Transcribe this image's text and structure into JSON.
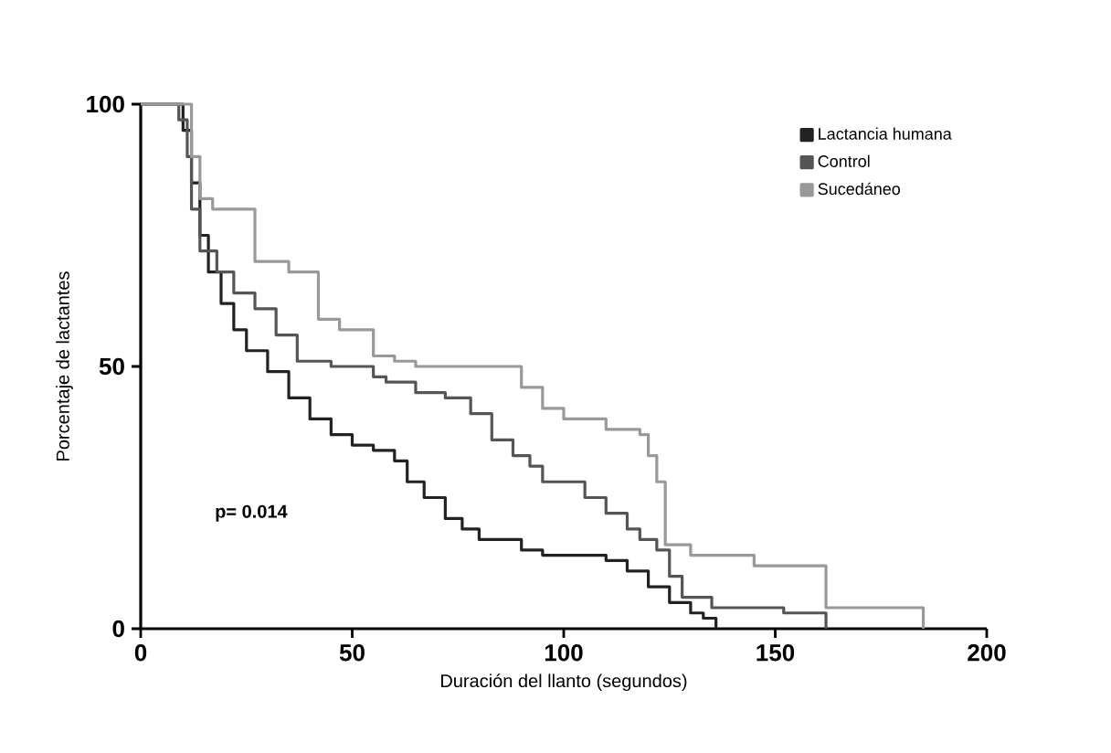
{
  "chart_data": {
    "type": "step",
    "xlabel": "Duración del llanto (segundos)",
    "ylabel": "Porcentaje de lactantes",
    "xlim": [
      0,
      200
    ],
    "ylim": [
      0,
      100
    ],
    "xticks": [
      0,
      50,
      100,
      150,
      200
    ],
    "yticks": [
      0,
      50,
      100
    ],
    "legend": "top right",
    "grid": false,
    "marker": "none",
    "line_style": "solid",
    "annotations": [
      "p= 0.014"
    ],
    "series": [
      {
        "name": "Lactancia humana",
        "color": "#222222",
        "x": [
          0,
          8,
          10,
          12,
          14,
          16,
          19,
          22,
          25,
          30,
          35,
          40,
          45,
          50,
          55,
          60,
          63,
          67,
          72,
          76,
          80,
          90,
          95,
          110,
          115,
          120,
          125,
          130,
          133,
          136
        ],
        "values": [
          100,
          100,
          95,
          85,
          75,
          68,
          62,
          57,
          53,
          49,
          44,
          40,
          37,
          35,
          34,
          32,
          28,
          25,
          21,
          19,
          17,
          15,
          14,
          13,
          11,
          8,
          5,
          3,
          2,
          0
        ]
      },
      {
        "name": "Control",
        "color": "#555555",
        "x": [
          0,
          7,
          9,
          11,
          12,
          14,
          18,
          22,
          27,
          32,
          37,
          45,
          55,
          58,
          65,
          72,
          78,
          83,
          88,
          92,
          95,
          105,
          110,
          115,
          118,
          122,
          125,
          128,
          135,
          152,
          162
        ],
        "values": [
          100,
          100,
          97,
          90,
          80,
          72,
          68,
          64,
          61,
          56,
          51,
          50,
          48,
          47,
          45,
          44,
          41,
          36,
          33,
          31,
          28,
          25,
          22,
          19,
          17,
          15,
          10,
          6,
          4,
          3,
          0
        ]
      },
      {
        "name": "Sucedáneo",
        "color": "#999999",
        "x": [
          0,
          10,
          12,
          14,
          17,
          27,
          35,
          42,
          47,
          55,
          60,
          65,
          90,
          95,
          100,
          110,
          118,
          120,
          122,
          124,
          130,
          145,
          162,
          185
        ],
        "values": [
          100,
          100,
          90,
          82,
          80,
          70,
          68,
          59,
          57,
          52,
          51,
          50,
          46,
          42,
          40,
          38,
          37,
          33,
          28,
          16,
          14,
          12,
          4,
          0
        ]
      }
    ]
  }
}
